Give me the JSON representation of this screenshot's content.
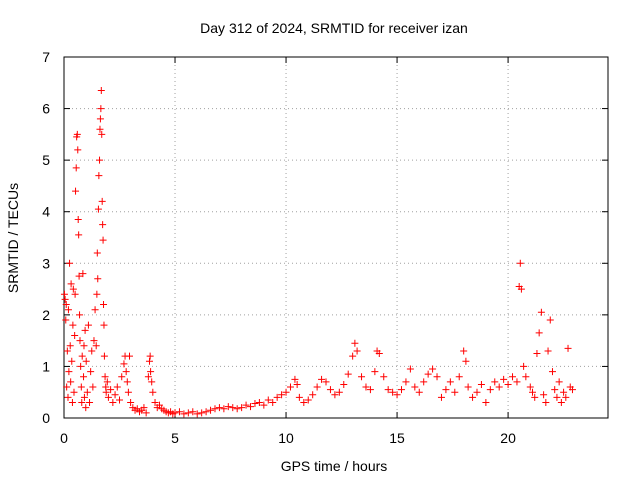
{
  "chart_data": {
    "type": "scatter",
    "title": "Day 312 of 2024, SRMTID for receiver izan",
    "xlabel": "GPS time / hours",
    "ylabel": "SRMTID / TECUs",
    "xlim": [
      0,
      24.5
    ],
    "ylim": [
      0,
      7
    ],
    "xticks": [
      0,
      5,
      10,
      15,
      20
    ],
    "yticks": [
      0,
      1,
      2,
      3,
      4,
      5,
      6,
      7
    ],
    "grid": true,
    "marker": "+",
    "marker_color": "#ff0000",
    "series": [
      {
        "name": "SRMTID",
        "points": [
          [
            0.02,
            2.4
          ],
          [
            0.05,
            2.3
          ],
          [
            0.08,
            1.9
          ],
          [
            0.1,
            2.2
          ],
          [
            0.12,
            0.6
          ],
          [
            0.15,
            1.3
          ],
          [
            0.18,
            0.4
          ],
          [
            0.2,
            2.1
          ],
          [
            0.22,
            0.9
          ],
          [
            0.25,
            3.0
          ],
          [
            0.28,
            1.4
          ],
          [
            0.3,
            0.7
          ],
          [
            0.32,
            2.6
          ],
          [
            0.35,
            1.1
          ],
          [
            0.38,
            0.3
          ],
          [
            0.4,
            1.8
          ],
          [
            0.42,
            2.5
          ],
          [
            0.45,
            0.5
          ],
          [
            0.48,
            1.6
          ],
          [
            0.5,
            2.4
          ],
          [
            0.52,
            4.4
          ],
          [
            0.55,
            4.85
          ],
          [
            0.57,
            5.45
          ],
          [
            0.6,
            5.5
          ],
          [
            0.62,
            5.2
          ],
          [
            0.64,
            3.85
          ],
          [
            0.66,
            3.55
          ],
          [
            0.68,
            2.75
          ],
          [
            0.7,
            2.0
          ],
          [
            0.72,
            1.5
          ],
          [
            0.75,
            1.0
          ],
          [
            0.78,
            0.6
          ],
          [
            0.8,
            0.3
          ],
          [
            0.82,
            1.2
          ],
          [
            0.85,
            2.8
          ],
          [
            0.88,
            0.8
          ],
          [
            0.9,
            1.4
          ],
          [
            0.92,
            0.4
          ],
          [
            0.95,
            1.7
          ],
          [
            0.98,
            0.2
          ],
          [
            1.0,
            1.1
          ],
          [
            1.05,
            0.5
          ],
          [
            1.1,
            1.8
          ],
          [
            1.15,
            0.3
          ],
          [
            1.2,
            0.9
          ],
          [
            1.25,
            1.3
          ],
          [
            1.3,
            0.6
          ],
          [
            1.35,
            1.5
          ],
          [
            1.4,
            2.1
          ],
          [
            1.45,
            1.4
          ],
          [
            1.48,
            2.4
          ],
          [
            1.5,
            3.2
          ],
          [
            1.52,
            2.7
          ],
          [
            1.55,
            4.05
          ],
          [
            1.57,
            4.7
          ],
          [
            1.6,
            5.0
          ],
          [
            1.62,
            5.6
          ],
          [
            1.64,
            5.8
          ],
          [
            1.66,
            6.0
          ],
          [
            1.68,
            6.35
          ],
          [
            1.7,
            5.5
          ],
          [
            1.72,
            4.2
          ],
          [
            1.74,
            3.75
          ],
          [
            1.76,
            3.45
          ],
          [
            1.78,
            2.2
          ],
          [
            1.8,
            1.8
          ],
          [
            1.82,
            1.2
          ],
          [
            1.85,
            0.8
          ],
          [
            1.88,
            0.6
          ],
          [
            1.9,
            0.5
          ],
          [
            1.95,
            0.7
          ],
          [
            2.0,
            0.4
          ],
          [
            2.1,
            0.55
          ],
          [
            2.2,
            0.3
          ],
          [
            2.3,
            0.45
          ],
          [
            2.4,
            0.6
          ],
          [
            2.5,
            0.35
          ],
          [
            2.6,
            0.8
          ],
          [
            2.7,
            1.05
          ],
          [
            2.75,
            1.2
          ],
          [
            2.8,
            0.9
          ],
          [
            2.85,
            0.7
          ],
          [
            2.9,
            0.5
          ],
          [
            2.95,
            1.2
          ],
          [
            3.0,
            0.3
          ],
          [
            3.1,
            0.2
          ],
          [
            3.2,
            0.15
          ],
          [
            3.3,
            0.18
          ],
          [
            3.4,
            0.12
          ],
          [
            3.5,
            0.15
          ],
          [
            3.6,
            0.2
          ],
          [
            3.7,
            0.1
          ],
          [
            3.8,
            0.8
          ],
          [
            3.85,
            1.1
          ],
          [
            3.88,
            1.2
          ],
          [
            3.9,
            0.9
          ],
          [
            3.95,
            0.7
          ],
          [
            4.0,
            0.5
          ],
          [
            4.1,
            0.3
          ],
          [
            4.2,
            0.2
          ],
          [
            4.3,
            0.25
          ],
          [
            4.4,
            0.18
          ],
          [
            4.5,
            0.15
          ],
          [
            4.6,
            0.12
          ],
          [
            4.7,
            0.1
          ],
          [
            4.8,
            0.12
          ],
          [
            4.9,
            0.08
          ],
          [
            5.0,
            0.1
          ],
          [
            5.2,
            0.12
          ],
          [
            5.4,
            0.08
          ],
          [
            5.6,
            0.1
          ],
          [
            5.8,
            0.12
          ],
          [
            6.0,
            0.08
          ],
          [
            6.2,
            0.1
          ],
          [
            6.4,
            0.12
          ],
          [
            6.6,
            0.15
          ],
          [
            6.8,
            0.18
          ],
          [
            7.0,
            0.2
          ],
          [
            7.2,
            0.18
          ],
          [
            7.4,
            0.22
          ],
          [
            7.6,
            0.2
          ],
          [
            7.8,
            0.18
          ],
          [
            8.0,
            0.2
          ],
          [
            8.2,
            0.25
          ],
          [
            8.4,
            0.22
          ],
          [
            8.6,
            0.28
          ],
          [
            8.8,
            0.3
          ],
          [
            9.0,
            0.25
          ],
          [
            9.2,
            0.35
          ],
          [
            9.4,
            0.3
          ],
          [
            9.6,
            0.4
          ],
          [
            9.8,
            0.45
          ],
          [
            10.0,
            0.5
          ],
          [
            10.2,
            0.6
          ],
          [
            10.4,
            0.75
          ],
          [
            10.5,
            0.65
          ],
          [
            10.6,
            0.4
          ],
          [
            10.8,
            0.3
          ],
          [
            11.0,
            0.35
          ],
          [
            11.2,
            0.45
          ],
          [
            11.4,
            0.6
          ],
          [
            11.6,
            0.75
          ],
          [
            11.8,
            0.7
          ],
          [
            12.0,
            0.55
          ],
          [
            12.2,
            0.45
          ],
          [
            12.4,
            0.5
          ],
          [
            12.6,
            0.65
          ],
          [
            12.8,
            0.85
          ],
          [
            13.0,
            1.2
          ],
          [
            13.1,
            1.45
          ],
          [
            13.2,
            1.3
          ],
          [
            13.4,
            0.8
          ],
          [
            13.6,
            0.6
          ],
          [
            13.8,
            0.55
          ],
          [
            14.0,
            0.9
          ],
          [
            14.1,
            1.3
          ],
          [
            14.2,
            1.25
          ],
          [
            14.4,
            0.8
          ],
          [
            14.6,
            0.55
          ],
          [
            14.8,
            0.5
          ],
          [
            15.0,
            0.45
          ],
          [
            15.2,
            0.55
          ],
          [
            15.4,
            0.7
          ],
          [
            15.6,
            0.95
          ],
          [
            15.8,
            0.6
          ],
          [
            16.0,
            0.5
          ],
          [
            16.2,
            0.7
          ],
          [
            16.4,
            0.85
          ],
          [
            16.6,
            0.95
          ],
          [
            16.8,
            0.8
          ],
          [
            17.0,
            0.4
          ],
          [
            17.2,
            0.55
          ],
          [
            17.4,
            0.7
          ],
          [
            17.6,
            0.5
          ],
          [
            17.8,
            0.8
          ],
          [
            18.0,
            1.3
          ],
          [
            18.1,
            1.1
          ],
          [
            18.2,
            0.6
          ],
          [
            18.4,
            0.4
          ],
          [
            18.6,
            0.5
          ],
          [
            18.8,
            0.65
          ],
          [
            19.0,
            0.3
          ],
          [
            19.2,
            0.55
          ],
          [
            19.4,
            0.7
          ],
          [
            19.6,
            0.6
          ],
          [
            19.8,
            0.75
          ],
          [
            20.0,
            0.65
          ],
          [
            20.2,
            0.8
          ],
          [
            20.4,
            0.7
          ],
          [
            20.5,
            2.55
          ],
          [
            20.55,
            3.0
          ],
          [
            20.6,
            2.5
          ],
          [
            20.7,
            1.0
          ],
          [
            20.8,
            0.8
          ],
          [
            21.0,
            0.6
          ],
          [
            21.1,
            0.5
          ],
          [
            21.2,
            0.4
          ],
          [
            21.3,
            1.25
          ],
          [
            21.4,
            1.65
          ],
          [
            21.5,
            2.05
          ],
          [
            21.6,
            0.45
          ],
          [
            21.7,
            0.3
          ],
          [
            21.8,
            1.3
          ],
          [
            21.9,
            1.9
          ],
          [
            22.0,
            0.9
          ],
          [
            22.1,
            0.55
          ],
          [
            22.2,
            0.4
          ],
          [
            22.3,
            0.7
          ],
          [
            22.4,
            0.3
          ],
          [
            22.5,
            0.5
          ],
          [
            22.6,
            0.4
          ],
          [
            22.7,
            1.35
          ],
          [
            22.8,
            0.6
          ],
          [
            22.9,
            0.55
          ]
        ]
      }
    ]
  }
}
